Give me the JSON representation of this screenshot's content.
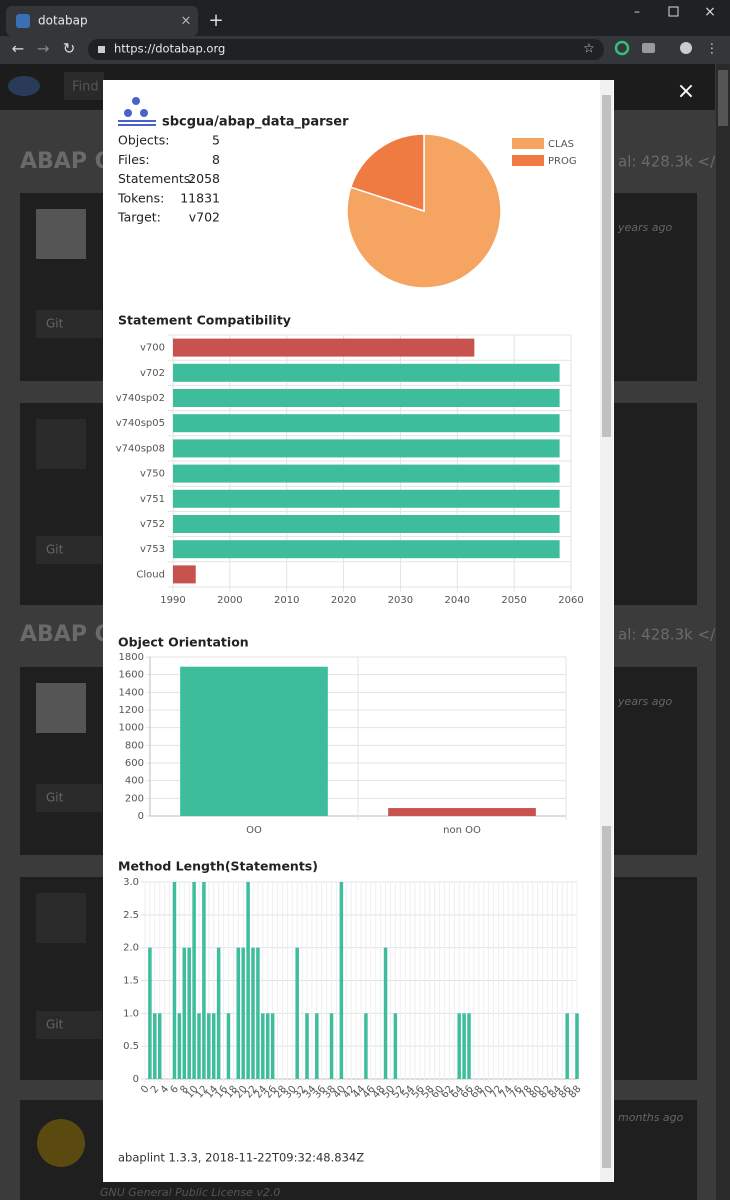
{
  "browser": {
    "tab_title": "dotabap",
    "url": "https://dotabap.org"
  },
  "background": {
    "search_placeholder": "Find",
    "headings": [
      "ABAP O",
      "ABAP O"
    ],
    "totals": [
      "al: 428.3k </>",
      "al: 428.3k </>"
    ],
    "card_button": "Git",
    "card_times": [
      "years ago",
      "years ago",
      "months ago"
    ],
    "license": "GNU General Public License v2.0"
  },
  "modal": {
    "repository": "sbcgua/abap_data_parser",
    "stats": [
      {
        "label": "Objects:",
        "value": 5
      },
      {
        "label": "Files:",
        "value": 8
      },
      {
        "label": "Statements:",
        "value": 2058
      },
      {
        "label": "Tokens:",
        "value": 11831
      },
      {
        "label": "Target:",
        "value": "v702"
      }
    ],
    "footer": "abaplint 1.3.3, 2018-11-22T09:32:48.834Z"
  },
  "chart_data": [
    {
      "type": "pie",
      "categories": [
        "CLAS",
        "PROG"
      ],
      "values": [
        4,
        1
      ],
      "colors": [
        "#f5a462",
        "#ef7b42"
      ],
      "legend": "right"
    },
    {
      "type": "hbar",
      "title": "Statement Compatibility",
      "categories": [
        "v700",
        "v702",
        "v740sp02",
        "v740sp05",
        "v740sp08",
        "v750",
        "v751",
        "v752",
        "v753",
        "Cloud"
      ],
      "values": [
        2043,
        2058,
        2058,
        2058,
        2058,
        2058,
        2058,
        2058,
        2058,
        1994
      ],
      "colors": [
        "#c8524e",
        "#3ebd9c",
        "#3ebd9c",
        "#3ebd9c",
        "#3ebd9c",
        "#3ebd9c",
        "#3ebd9c",
        "#3ebd9c",
        "#3ebd9c",
        "#c8524e"
      ],
      "xlim": [
        1990,
        2060
      ],
      "xticks": [
        1990,
        2000,
        2010,
        2020,
        2030,
        2040,
        2050,
        2060
      ],
      "grid": true
    },
    {
      "type": "bar",
      "title": "Object Orientation",
      "categories": [
        "OO",
        "non OO"
      ],
      "values": [
        1690,
        90
      ],
      "colors": [
        "#3ebd9c",
        "#c8524e"
      ],
      "ylim": [
        0,
        1800
      ],
      "yticks": [
        0,
        200,
        400,
        600,
        800,
        1000,
        1200,
        1400,
        1600,
        1800
      ],
      "grid": true
    },
    {
      "type": "bar",
      "title": "Method Length(Statements)",
      "categories": [
        0,
        null,
        2,
        null,
        4,
        null,
        6,
        null,
        8,
        null,
        10,
        null,
        12,
        null,
        14,
        null,
        16,
        null,
        18,
        null,
        20,
        null,
        22,
        null,
        24,
        null,
        26,
        null,
        28,
        null,
        30,
        null,
        32,
        null,
        34,
        null,
        36,
        null,
        38,
        null,
        40,
        null,
        42,
        null,
        44,
        null,
        46,
        null,
        48,
        null,
        50,
        null,
        52,
        null,
        54,
        null,
        56,
        null,
        58,
        null,
        60,
        null,
        62,
        null,
        64,
        null,
        66,
        null,
        68,
        null,
        70,
        null,
        72,
        null,
        74,
        null,
        76,
        null,
        78,
        null,
        80,
        null,
        82,
        null,
        84,
        null,
        86,
        null,
        88
      ],
      "values": [
        0,
        2,
        1,
        1,
        0,
        0,
        3,
        1,
        2,
        2,
        3,
        1,
        3,
        1,
        1,
        2,
        0,
        1,
        0,
        2,
        2,
        3,
        2,
        2,
        1,
        1,
        1,
        0,
        0,
        0,
        0,
        2,
        0,
        1,
        0,
        1,
        0,
        0,
        1,
        0,
        3,
        0,
        0,
        0,
        0,
        1,
        0,
        0,
        0,
        2,
        0,
        1,
        0,
        0,
        0,
        0,
        0,
        0,
        0,
        0,
        0,
        0,
        0,
        0,
        1,
        1,
        1,
        0,
        0,
        0,
        0,
        0,
        0,
        0,
        0,
        0,
        0,
        0,
        0,
        0,
        0,
        0,
        0,
        0,
        0,
        0,
        1,
        0,
        1
      ],
      "color": "#3ebd9c",
      "ylim": [
        0,
        3
      ],
      "yticks": [
        0,
        0.5,
        {
          "value": 1,
          "label": "1.0"
        },
        1.5,
        {
          "value": 2,
          "label": "2.0"
        },
        2.5,
        {
          "value": 3,
          "label": "3.0"
        }
      ],
      "grid": true
    }
  ]
}
